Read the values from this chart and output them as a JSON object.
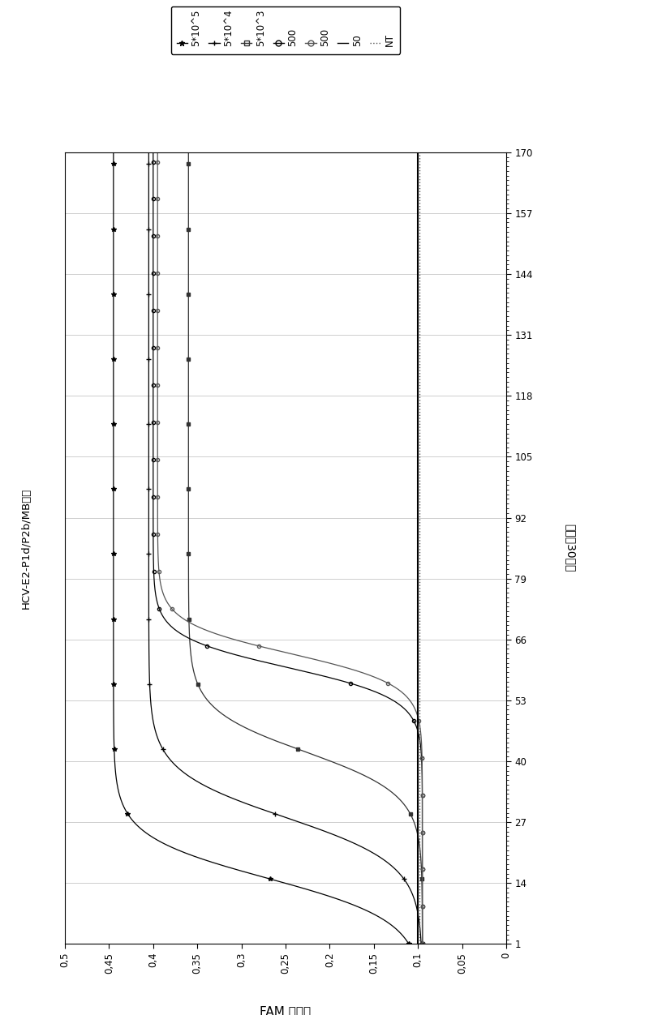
{
  "title": "HCV-E2-P1d/P2b/MB参照",
  "xlabel_bottom": "FAM 信号値",
  "ylabel_right": "循环（30秒）",
  "x_ticks": [
    0,
    0.05,
    0.1,
    0.15,
    0.2,
    0.25,
    0.3,
    0.35,
    0.4,
    0.45,
    0.5
  ],
  "x_tick_labels": [
    "0",
    "0,05",
    "0,1",
    "0,15",
    "0,2",
    "0,25",
    "0,3",
    "0,35",
    "0,4",
    "0,45",
    "0,5"
  ],
  "y_ticks": [
    1,
    14,
    27,
    40,
    53,
    66,
    79,
    92,
    105,
    118,
    131,
    144,
    157,
    170
  ],
  "background_color": "#ffffff",
  "series": [
    {
      "label": "5*10^5",
      "marker": "*",
      "linestyle": "-",
      "color": "#000000",
      "base": 0.095,
      "plateau": 0.445,
      "ct": 15,
      "steepness": 0.22,
      "markersize": 4,
      "markevery": 14
    },
    {
      "label": "5*10^4",
      "marker": "+",
      "linestyle": "-",
      "color": "#000000",
      "base": 0.095,
      "plateau": 0.405,
      "ct": 28,
      "steepness": 0.2,
      "markersize": 4,
      "markevery": 14
    },
    {
      "label": "5*10^3",
      "marker": "s",
      "linestyle": "-",
      "color": "#333333",
      "base": 0.095,
      "plateau": 0.36,
      "ct": 42,
      "steepness": 0.22,
      "markersize": 3,
      "markevery": 14
    },
    {
      "label": "500",
      "marker": "o",
      "linestyle": "-",
      "color": "#000000",
      "base": 0.095,
      "plateau": 0.4,
      "ct": 60,
      "steepness": 0.3,
      "markersize": 3,
      "markevery": 8
    },
    {
      "label": "500",
      "marker": "o",
      "linestyle": "-",
      "color": "#555555",
      "base": 0.095,
      "plateau": 0.395,
      "ct": 63,
      "steepness": 0.3,
      "markersize": 3,
      "markevery": 8
    },
    {
      "label": "50",
      "marker": "",
      "linestyle": "-",
      "color": "#000000",
      "base": 0.1,
      "plateau": 0.101,
      "ct": 999,
      "steepness": 0.3,
      "markersize": 0,
      "markevery": 1
    },
    {
      "label": "NT",
      "marker": "",
      "linestyle": "dotted",
      "color": "#555555",
      "base": 0.098,
      "plateau": 0.099,
      "ct": 999,
      "steepness": 0.3,
      "markersize": 0,
      "markevery": 1
    }
  ]
}
